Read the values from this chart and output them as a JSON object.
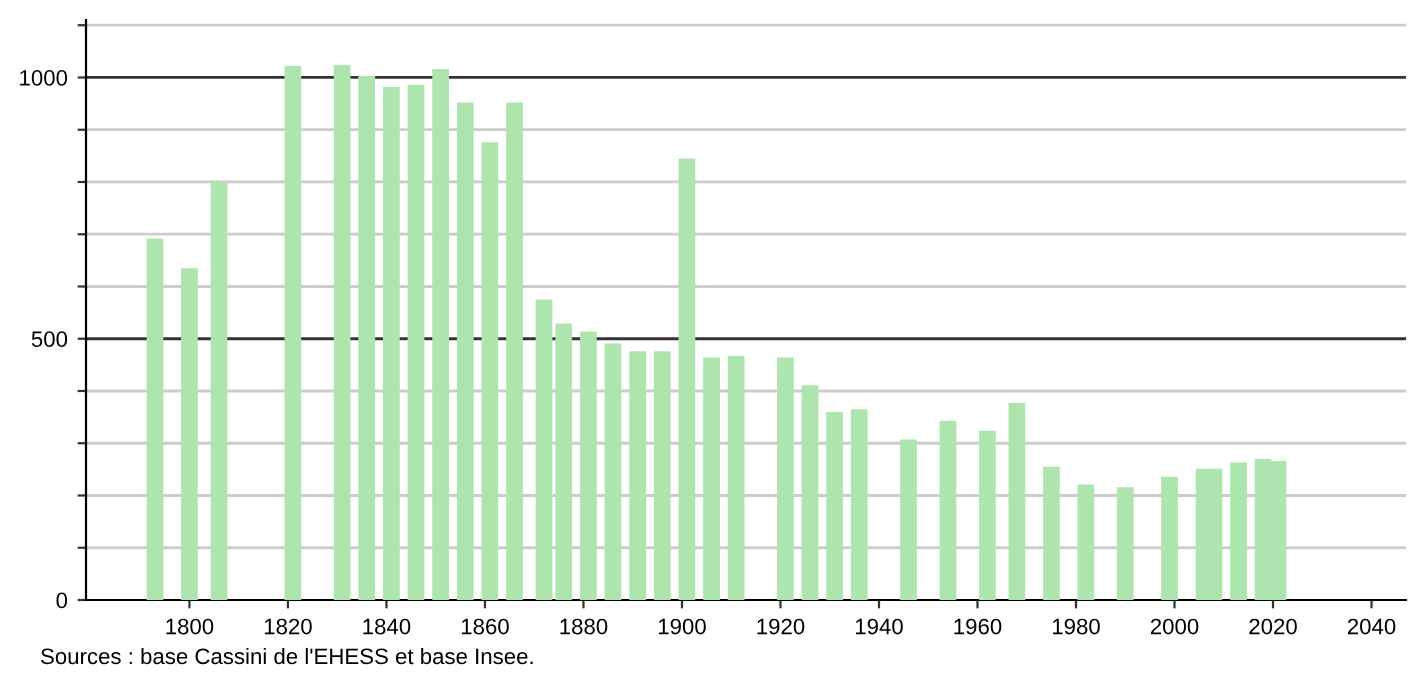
{
  "chart_data": {
    "type": "bar",
    "color": "#aee4ae",
    "x": [
      1793,
      1800,
      1806,
      1821,
      1831,
      1836,
      1841,
      1846,
      1851,
      1856,
      1861,
      1866,
      1872,
      1876,
      1881,
      1886,
      1891,
      1896,
      1901,
      1906,
      1911,
      1921,
      1926,
      1931,
      1936,
      1946,
      1954,
      1962,
      1968,
      1975,
      1982,
      1990,
      1999,
      2006,
      2008,
      2013,
      2018,
      2021
    ],
    "values": [
      692,
      635,
      800,
      1022,
      1024,
      1003,
      982,
      986,
      1016,
      952,
      876,
      952,
      575,
      529,
      514,
      491,
      476,
      476,
      845,
      464,
      467,
      464,
      411,
      360,
      365,
      307,
      343,
      324,
      377,
      255,
      221,
      216,
      236,
      251,
      251,
      263,
      270,
      266
    ],
    "xlim": [
      1779,
      2047
    ],
    "xticks": [
      1800,
      1820,
      1840,
      1860,
      1880,
      1900,
      1920,
      1940,
      1960,
      1980,
      2000,
      2020,
      2040
    ],
    "ylim": [
      0,
      1110
    ],
    "yticks": [
      0,
      {
        "value": 100,
        "label": null
      },
      {
        "value": 200,
        "label": null
      },
      {
        "value": 300,
        "label": null
      },
      {
        "value": 400,
        "label": null
      },
      500,
      {
        "value": 600,
        "label": null
      },
      {
        "value": 700,
        "label": null
      },
      {
        "value": 800,
        "label": null
      },
      {
        "value": 900,
        "label": null
      },
      1000,
      {
        "value": 1100,
        "label": null
      }
    ],
    "grid": "y",
    "annotations": [
      "Sources : base Cassini de l'EHESS et base Insee."
    ]
  }
}
